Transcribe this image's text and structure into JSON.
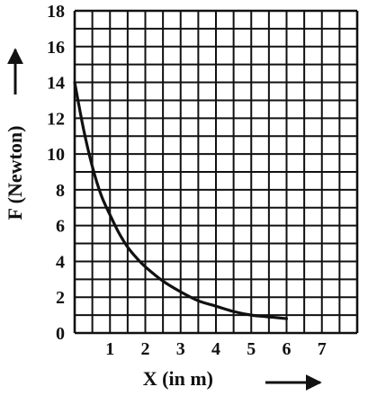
{
  "chart_data": {
    "type": "line",
    "xlabel": "X (in m)",
    "ylabel": "F (Newton)",
    "xlim": [
      0,
      8
    ],
    "ylim": [
      0,
      18
    ],
    "x_minor_step": 0.5,
    "y_minor_step": 1,
    "x_ticks": [
      {
        "value": 1,
        "label": "1"
      },
      {
        "value": 2,
        "label": "2"
      },
      {
        "value": 3,
        "label": "3"
      },
      {
        "value": 4,
        "label": "4"
      },
      {
        "value": 5,
        "label": "5"
      },
      {
        "value": 6,
        "label": "6"
      },
      {
        "value": 7,
        "label": "7"
      }
    ],
    "y_ticks": [
      {
        "value": 0,
        "label": "0"
      },
      {
        "value": 2,
        "label": "2"
      },
      {
        "value": 4,
        "label": "4"
      },
      {
        "value": 6,
        "label": "6"
      },
      {
        "value": 8,
        "label": "8"
      },
      {
        "value": 10,
        "label": "10"
      },
      {
        "value": 12,
        "label": "12"
      },
      {
        "value": 14,
        "label": "14"
      },
      {
        "value": 16,
        "label": "16"
      },
      {
        "value": 18,
        "label": "18"
      }
    ],
    "grid": true,
    "series": [
      {
        "x": [
          0.0,
          0.25,
          0.5,
          0.75,
          1.0,
          1.25,
          1.5,
          1.75,
          2.0,
          2.5,
          3.0,
          3.5,
          4.0,
          4.5,
          5.0,
          5.5,
          6.0
        ],
        "y": [
          14.0,
          11.4,
          9.3,
          7.7,
          6.6,
          5.6,
          4.8,
          4.2,
          3.7,
          2.9,
          2.3,
          1.8,
          1.5,
          1.2,
          1.0,
          0.9,
          0.8
        ],
        "color": "#111111"
      }
    ]
  }
}
